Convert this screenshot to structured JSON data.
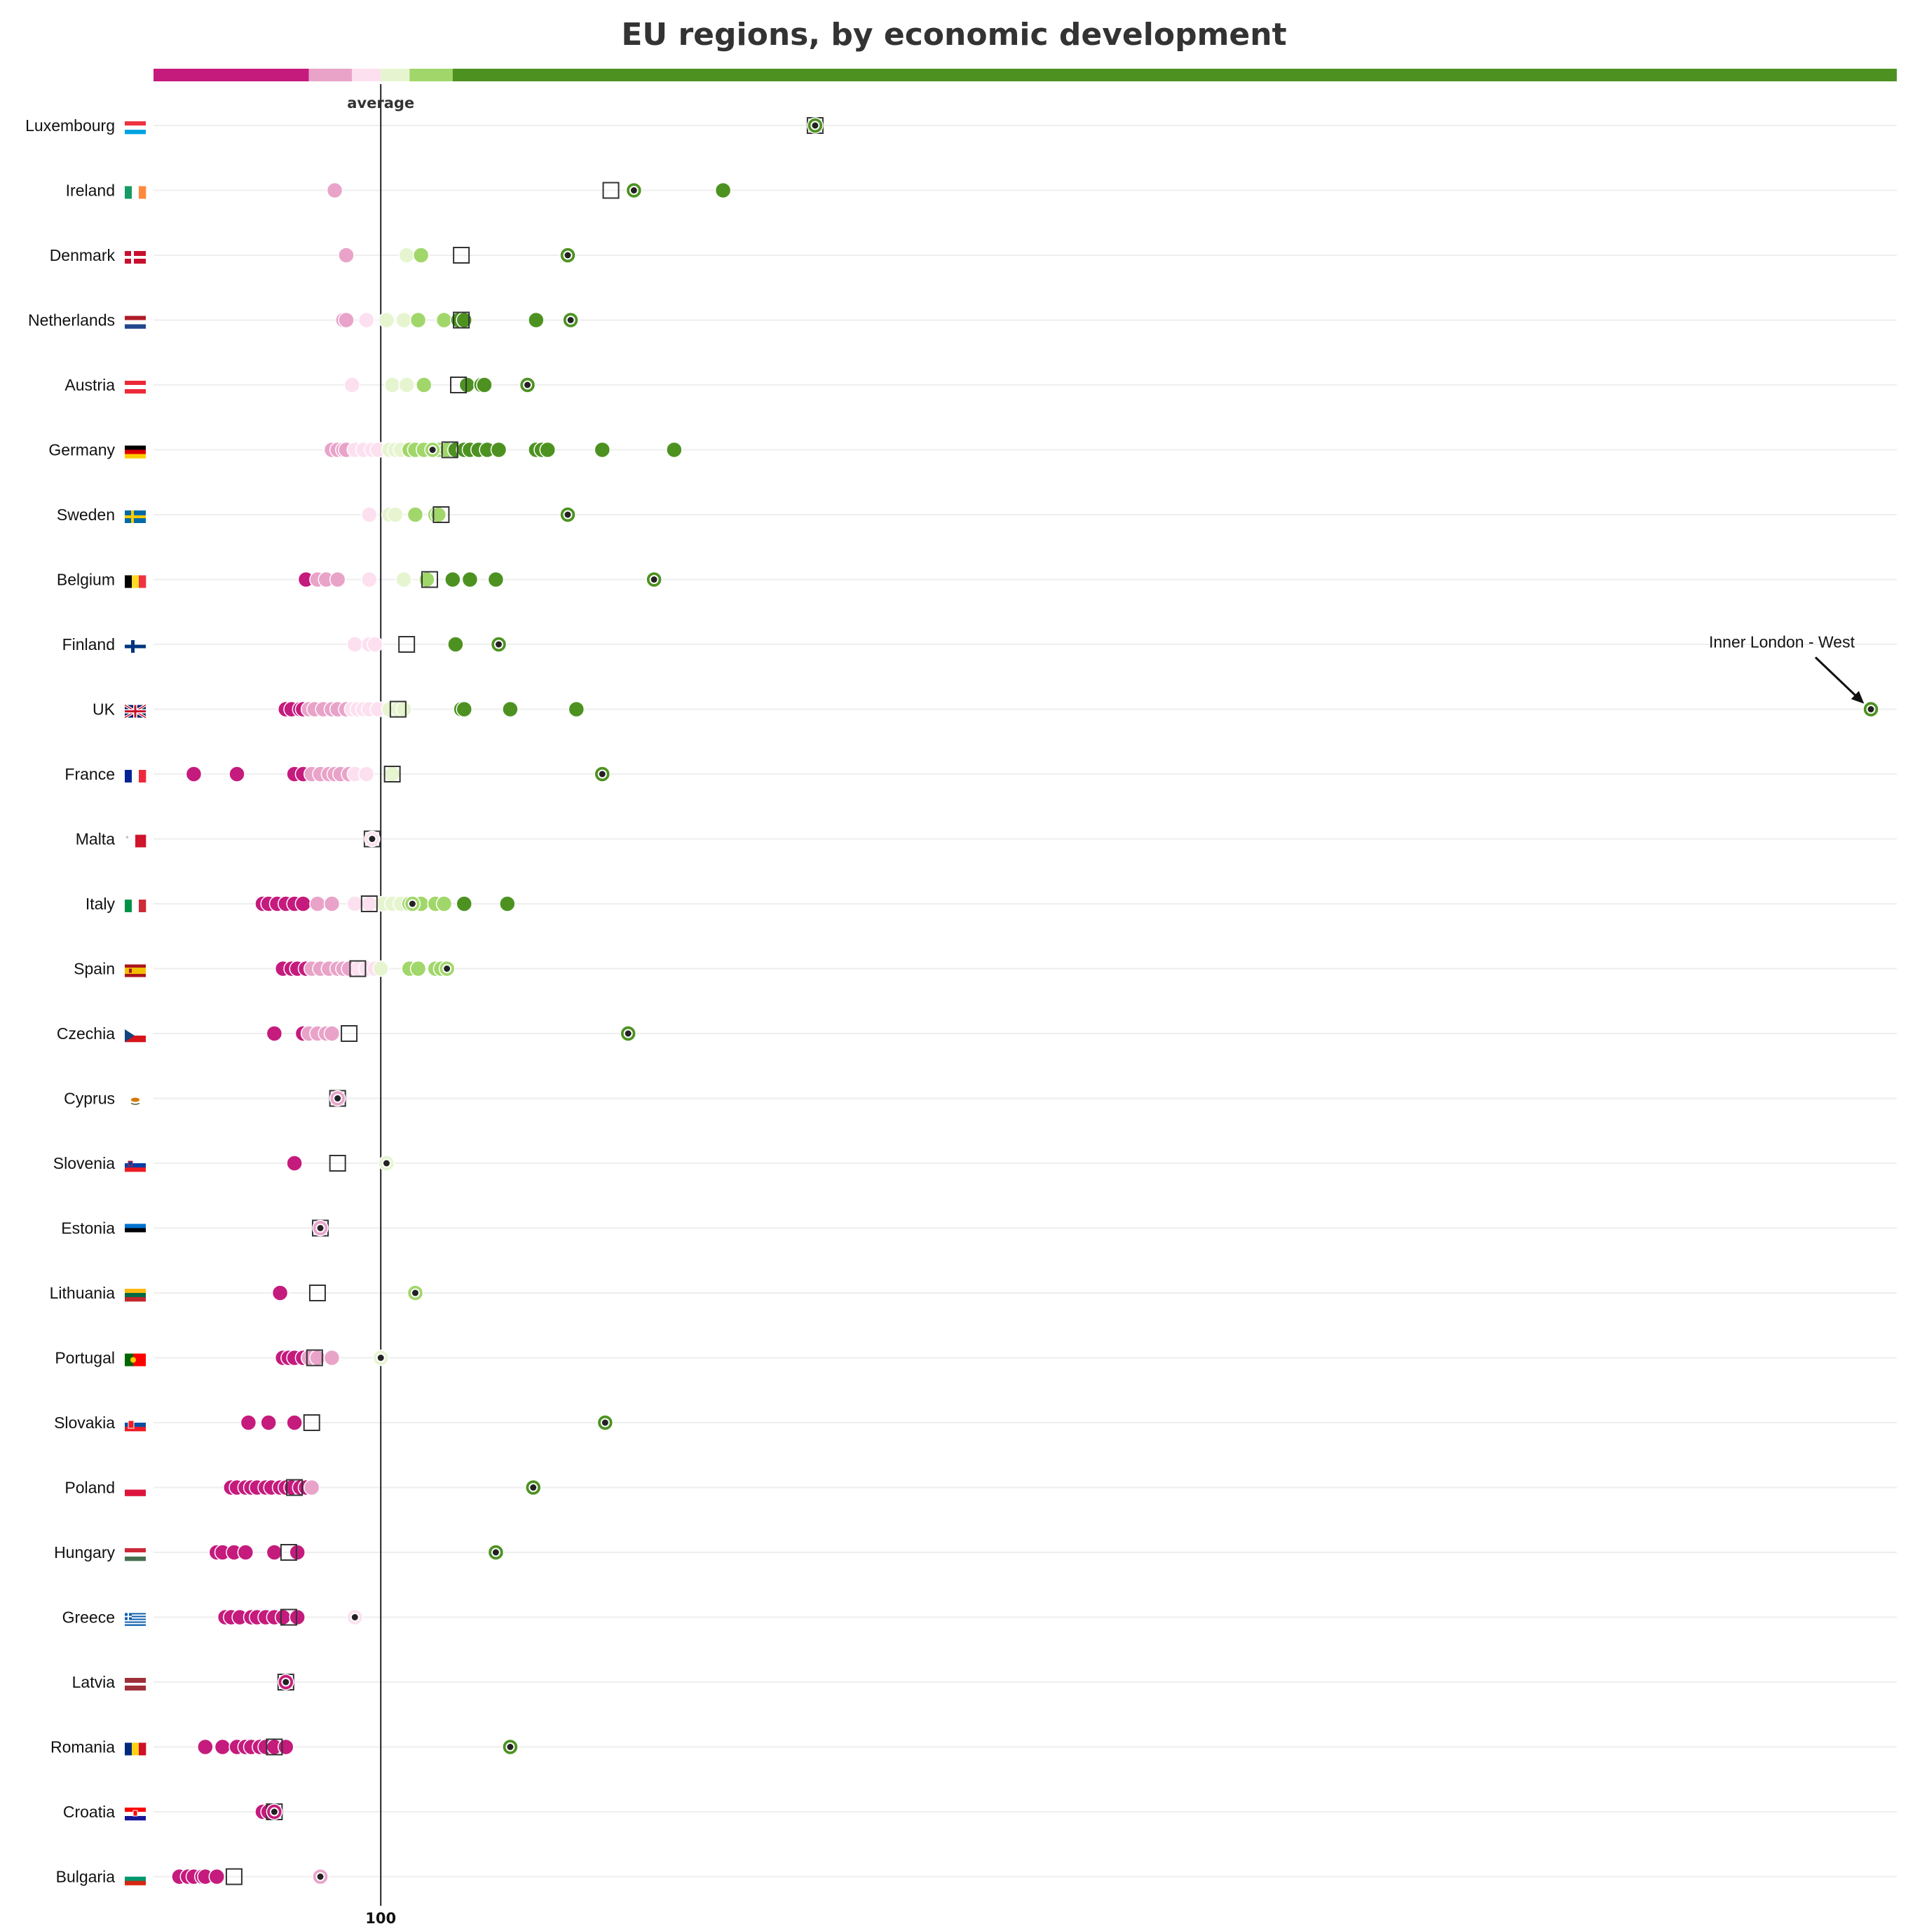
{
  "chart_data": {
    "type": "scatter",
    "title": "EU regions, by economic development",
    "average_label": "average",
    "x_ticks": [
      {
        "value": 100,
        "label": "100"
      }
    ],
    "xlim": [
      21,
      627
    ],
    "legend_bands": [
      {
        "from": 21,
        "to": 75,
        "color": "#c51b7d"
      },
      {
        "from": 75,
        "to": 90,
        "color": "#e9a3c9"
      },
      {
        "from": 90,
        "to": 100,
        "color": "#fde0ef"
      },
      {
        "from": 100,
        "to": 110,
        "color": "#e6f5d0"
      },
      {
        "from": 110,
        "to": 125,
        "color": "#a1d76a"
      },
      {
        "from": 125,
        "to": 627,
        "color": "#4d9221"
      }
    ],
    "annotation": {
      "text": "Inner London - West",
      "country": "UK",
      "x": 618
    },
    "countries": [
      {
        "name": "Luxembourg",
        "flag": "luxembourg-flag-icon",
        "average": 251,
        "capital": 251,
        "regions": [
          251
        ]
      },
      {
        "name": "Ireland",
        "flag": "ireland-flag-icon",
        "average": 180,
        "capital": 188,
        "regions": [
          84,
          188,
          219
        ]
      },
      {
        "name": "Denmark",
        "flag": "denmark-flag-icon",
        "average": 128,
        "capital": 165,
        "regions": [
          88,
          109,
          114,
          165
        ]
      },
      {
        "name": "Netherlands",
        "flag": "netherlands-flag-icon",
        "average": 128,
        "capital": 166,
        "regions": [
          87,
          88,
          95,
          102,
          108,
          113,
          122,
          127,
          129,
          154,
          166
        ]
      },
      {
        "name": "Austria",
        "flag": "austria-flag-icon",
        "average": 127,
        "capital": 151,
        "regions": [
          90,
          104,
          109,
          115,
          130,
          135,
          136,
          151
        ]
      },
      {
        "name": "Germany",
        "flag": "germany-flag-icon",
        "average": 124,
        "capital": 118,
        "regions": [
          83,
          85,
          87,
          88,
          91,
          94,
          97,
          99,
          103,
          105,
          107,
          110,
          112,
          115,
          118,
          120,
          123,
          126,
          129,
          131,
          134,
          137,
          141,
          154,
          156,
          158,
          177,
          202
        ]
      },
      {
        "name": "Sweden",
        "flag": "sweden-flag-icon",
        "average": 121,
        "capital": 165,
        "regions": [
          96,
          103,
          105,
          112,
          119,
          120,
          165
        ]
      },
      {
        "name": "Belgium",
        "flag": "belgium-flag-icon",
        "average": 117,
        "capital": 195,
        "regions": [
          74,
          78,
          81,
          85,
          96,
          108,
          116,
          125,
          131,
          140,
          195
        ]
      },
      {
        "name": "Finland",
        "flag": "finland-flag-icon",
        "average": 109,
        "capital": 141,
        "regions": [
          91,
          96,
          98,
          126,
          141
        ]
      },
      {
        "name": "UK",
        "flag": "uk-flag-icon",
        "average": 106,
        "capital": 618,
        "regions": [
          67,
          69,
          72,
          73,
          75,
          77,
          80,
          83,
          85,
          88,
          90,
          92,
          94,
          96,
          99,
          103,
          106,
          108,
          128,
          129,
          145,
          168,
          618
        ]
      },
      {
        "name": "France",
        "flag": "france-flag-icon",
        "average": 104,
        "capital": 177,
        "regions": [
          35,
          50,
          70,
          73,
          76,
          79,
          82,
          84,
          86,
          89,
          91,
          95,
          104,
          177
        ]
      },
      {
        "name": "Malta",
        "flag": "malta-flag-icon",
        "average": 97,
        "capital": 97,
        "regions": [
          97
        ]
      },
      {
        "name": "Italy",
        "flag": "italy-flag-icon",
        "average": 96,
        "capital": 111,
        "regions": [
          59,
          61,
          64,
          67,
          70,
          73,
          78,
          83,
          91,
          96,
          101,
          104,
          107,
          110,
          111,
          114,
          119,
          122,
          129,
          144
        ]
      },
      {
        "name": "Spain",
        "flag": "spain-flag-icon",
        "average": 92,
        "capital": 123,
        "regions": [
          66,
          69,
          71,
          74,
          76,
          79,
          82,
          85,
          87,
          89,
          92,
          95,
          98,
          100,
          110,
          113,
          119,
          121,
          123
        ]
      },
      {
        "name": "Czechia",
        "flag": "czechia-flag-icon",
        "average": 89,
        "capital": 186,
        "regions": [
          63,
          73,
          75,
          78,
          81,
          83,
          186
        ]
      },
      {
        "name": "Cyprus",
        "flag": "cyprus-flag-icon",
        "average": 85,
        "capital": 85,
        "regions": [
          85
        ]
      },
      {
        "name": "Slovenia",
        "flag": "slovenia-flag-icon",
        "average": 85,
        "capital": 102,
        "regions": [
          70,
          102
        ]
      },
      {
        "name": "Estonia",
        "flag": "estonia-flag-icon",
        "average": 79,
        "capital": 79,
        "regions": [
          79
        ]
      },
      {
        "name": "Lithuania",
        "flag": "lithuania-flag-icon",
        "average": 78,
        "capital": 112,
        "regions": [
          65,
          112
        ]
      },
      {
        "name": "Portugal",
        "flag": "portugal-flag-icon",
        "average": 77,
        "capital": 100,
        "regions": [
          66,
          68,
          70,
          73,
          75,
          78,
          83,
          100
        ]
      },
      {
        "name": "Slovakia",
        "flag": "slovakia-flag-icon",
        "average": 76,
        "capital": 178,
        "regions": [
          54,
          61,
          70,
          178
        ]
      },
      {
        "name": "Poland",
        "flag": "poland-flag-icon",
        "average": 70,
        "capital": 153,
        "regions": [
          48,
          50,
          53,
          55,
          57,
          60,
          62,
          65,
          67,
          69,
          72,
          74,
          76,
          153
        ]
      },
      {
        "name": "Hungary",
        "flag": "hungary-flag-icon",
        "average": 68,
        "capital": 140,
        "regions": [
          43,
          45,
          49,
          53,
          63,
          71,
          140
        ]
      },
      {
        "name": "Greece",
        "flag": "greece-flag-icon",
        "average": 68,
        "capital": 91,
        "regions": [
          46,
          48,
          51,
          55,
          57,
          60,
          63,
          66,
          71,
          91
        ]
      },
      {
        "name": "Latvia",
        "flag": "latvia-flag-icon",
        "average": 67,
        "capital": 67,
        "regions": [
          67
        ]
      },
      {
        "name": "Romania",
        "flag": "romania-flag-icon",
        "average": 63,
        "capital": 145,
        "regions": [
          39,
          45,
          50,
          53,
          55,
          58,
          60,
          63,
          67,
          145
        ]
      },
      {
        "name": "Croatia",
        "flag": "croatia-flag-icon",
        "average": 63,
        "capital": 63,
        "regions": [
          59,
          61,
          63
        ]
      },
      {
        "name": "Bulgaria",
        "flag": "bulgaria-flag-icon",
        "average": 49,
        "capital": 79,
        "regions": [
          30,
          33,
          35,
          38,
          39,
          43,
          79
        ]
      }
    ]
  }
}
